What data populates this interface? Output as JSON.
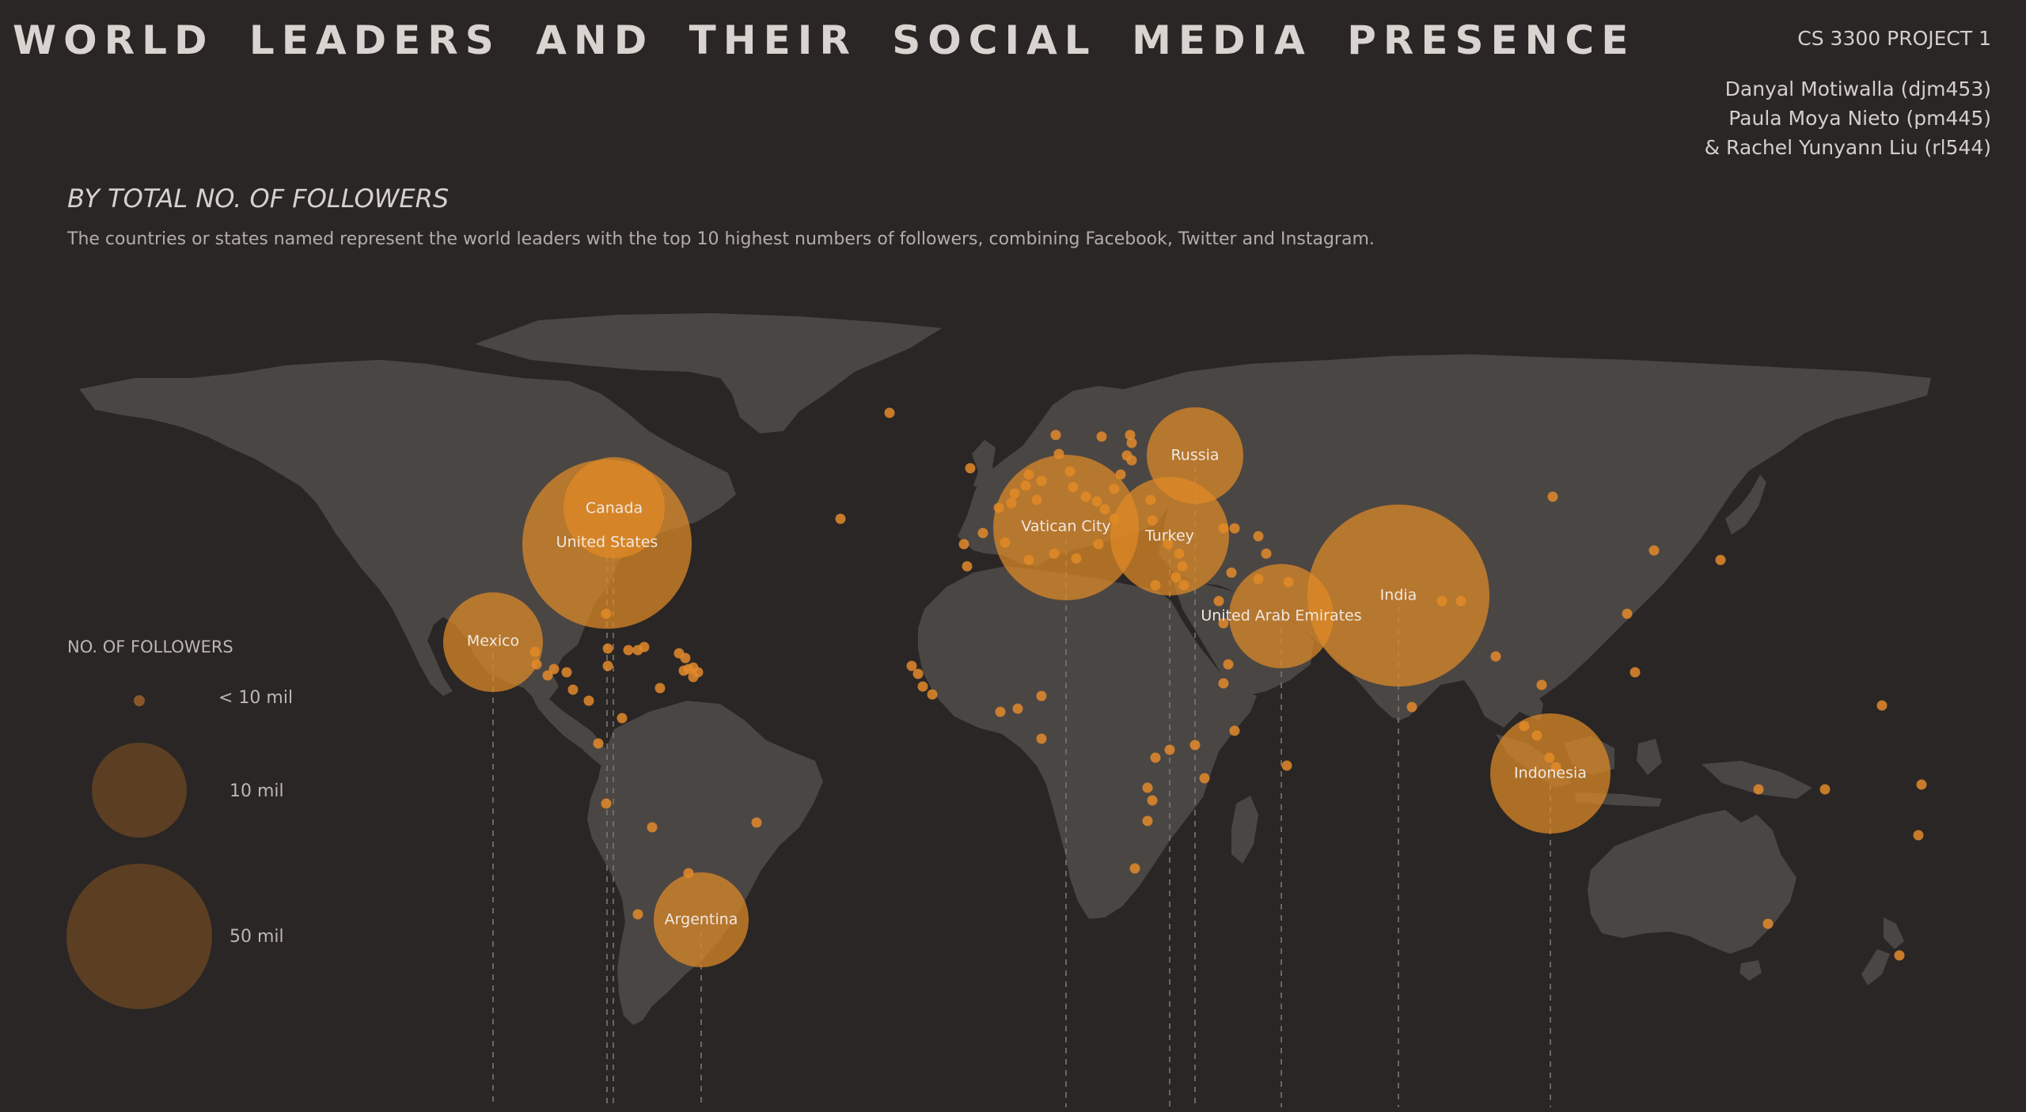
{
  "header": {
    "title": "WORLD LEADERS AND THEIR SOCIAL MEDIA PRESENCE",
    "course": "CS 3300 PROJECT 1",
    "authors": [
      "Danyal Motiwalla (djm453)",
      "Paula Moya Nieto (pm445)",
      "& Rachel Yunyann Liu (rl544)"
    ]
  },
  "section": {
    "subtitle": "BY TOTAL NO. OF FOLLOWERS",
    "description": "The countries or states named represent the world leaders with the top 10 highest numbers of followers, combining Facebook, Twitter and Instagram."
  },
  "legend": {
    "title": "NO. OF FOLLOWERS",
    "items": [
      {
        "label": "< 10 mil",
        "followers_mil": 1
      },
      {
        "label": "10 mil",
        "followers_mil": 10
      },
      {
        "label": "50 mil",
        "followers_mil": 50
      }
    ]
  },
  "colors": {
    "background": "#292625",
    "land": "#4a4644",
    "bubble": "#e08a26"
  },
  "chart_data": {
    "type": "bubble-map",
    "top10": [
      {
        "name": "United States",
        "lon": -98,
        "lat": 39.5
      },
      {
        "name": "Canada",
        "lon": -95,
        "lat": 47
      },
      {
        "name": "Mexico",
        "lon": -102,
        "lat": 22.5
      },
      {
        "name": "Argentina",
        "lon": -60,
        "lat": -34
      },
      {
        "name": "Vatican City",
        "lon": 12.4,
        "lat": 41.9
      },
      {
        "name": "Russia",
        "lon": 37.6,
        "lat": 55.7
      },
      {
        "name": "Turkey",
        "lon": 32.8,
        "lat": 39.9
      },
      {
        "name": "United Arab Emirates",
        "lon": 54.4,
        "lat": 24.4
      },
      {
        "name": "India",
        "lon": 77.2,
        "lat": 28.6
      },
      {
        "name": "Indonesia",
        "lon": 106.8,
        "lat": -6.2
      }
    ]
  }
}
